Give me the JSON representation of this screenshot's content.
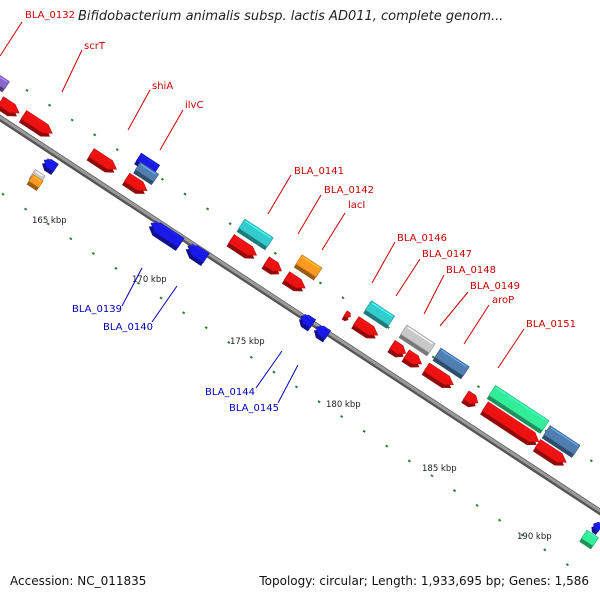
{
  "title": "Bifidobacterium animalis subsp. lactis AD011, complete genom...",
  "accession": "Accession: NC_011835",
  "topology": "Topology: circular; Length: 1,933,695 bp; Genes: 1,586",
  "colors": {
    "backbone": "#8c8c8c",
    "gc_ticks": "#2e7d32",
    "forward_label": "#cc0000",
    "reverse_label": "#0000bb",
    "cds_red": "#ee1111",
    "cds_blue": "#1a1ae8",
    "cds_cyan": "#33cccc",
    "cds_orange": "#ff9922",
    "cds_steel": "#4f7fb0",
    "cds_gray": "#c8c8c8",
    "cds_green": "#33ee99",
    "cds_purple": "#8866cc"
  },
  "scale_labels": [
    "165 kbp",
    "170 kbp",
    "175 kbp",
    "180 kbp",
    "185 kbp",
    "190 kbp"
  ],
  "forward_genes": [
    "BLA_0132",
    "scrT",
    "shiA",
    "ilvC",
    "BLA_0141",
    "BLA_0142",
    "lacI",
    "BLA_0146",
    "BLA_0147",
    "BLA_0148",
    "BLA_0149",
    "aroP",
    "BLA_0151"
  ],
  "reverse_genes": [
    "BLA_0139",
    "BLA_0140",
    "BLA_0144",
    "BLA_0145"
  ]
}
